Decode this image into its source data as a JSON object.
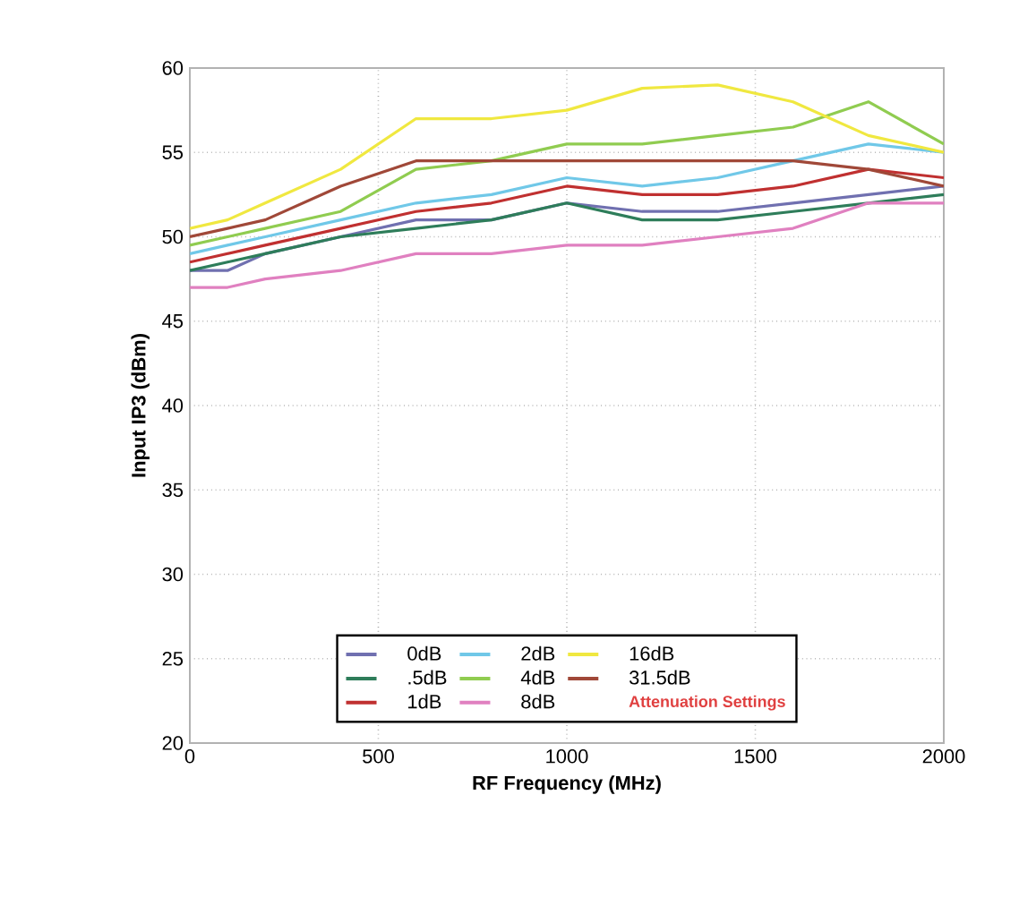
{
  "chart_data": {
    "type": "line",
    "xlabel": "RF Frequency (MHz)",
    "ylabel": "Input IP3 (dBm)",
    "legend_title": "Attenuation Settings",
    "x": [
      0,
      100,
      200,
      400,
      600,
      800,
      1000,
      1200,
      1400,
      1600,
      1800,
      2000
    ],
    "series": [
      {
        "name": "0dB",
        "color": "#7070b0",
        "values": [
          48,
          48,
          49,
          50,
          51,
          51,
          52,
          51.5,
          51.5,
          52,
          52.5,
          53
        ]
      },
      {
        "name": ".5dB",
        "color": "#2e7d5a",
        "values": [
          48,
          48.5,
          49,
          50,
          50.5,
          51,
          52,
          51,
          51,
          51.5,
          52,
          52.5
        ]
      },
      {
        "name": "1dB",
        "color": "#c03030",
        "values": [
          48.5,
          49,
          49.5,
          50.5,
          51.5,
          52,
          53,
          52.5,
          52.5,
          53,
          54,
          53.5
        ]
      },
      {
        "name": "2dB",
        "color": "#70c8e8",
        "values": [
          49,
          49.5,
          50,
          51,
          52,
          52.5,
          53.5,
          53,
          53.5,
          54.5,
          55.5,
          55
        ]
      },
      {
        "name": "4dB",
        "color": "#90cc50",
        "values": [
          49.5,
          50,
          50.5,
          51.5,
          54,
          54.5,
          55.5,
          55.5,
          56,
          56.5,
          58,
          55.5
        ]
      },
      {
        "name": "8dB",
        "color": "#e080c0",
        "values": [
          47,
          47,
          47.5,
          48,
          49,
          49,
          49.5,
          49.5,
          50,
          50.5,
          52,
          52
        ]
      },
      {
        "name": "16dB",
        "color": "#f0e840",
        "values": [
          50.5,
          51,
          52,
          54,
          57,
          57,
          57.5,
          58.8,
          59,
          58,
          56,
          55
        ]
      },
      {
        "name": "31.5dB",
        "color": "#a04838",
        "values": [
          50,
          50.5,
          51,
          53,
          54.5,
          54.5,
          54.5,
          54.5,
          54.5,
          54.5,
          54,
          53
        ]
      }
    ],
    "xlim": [
      0,
      2000
    ],
    "ylim": [
      20,
      60
    ],
    "xticks": [
      0,
      500,
      1000,
      1500,
      2000
    ],
    "yticks": [
      20,
      25,
      30,
      35,
      40,
      45,
      50,
      55,
      60
    ],
    "grid": true,
    "legend": "bottom",
    "marker": "none",
    "line_style": "solid"
  }
}
